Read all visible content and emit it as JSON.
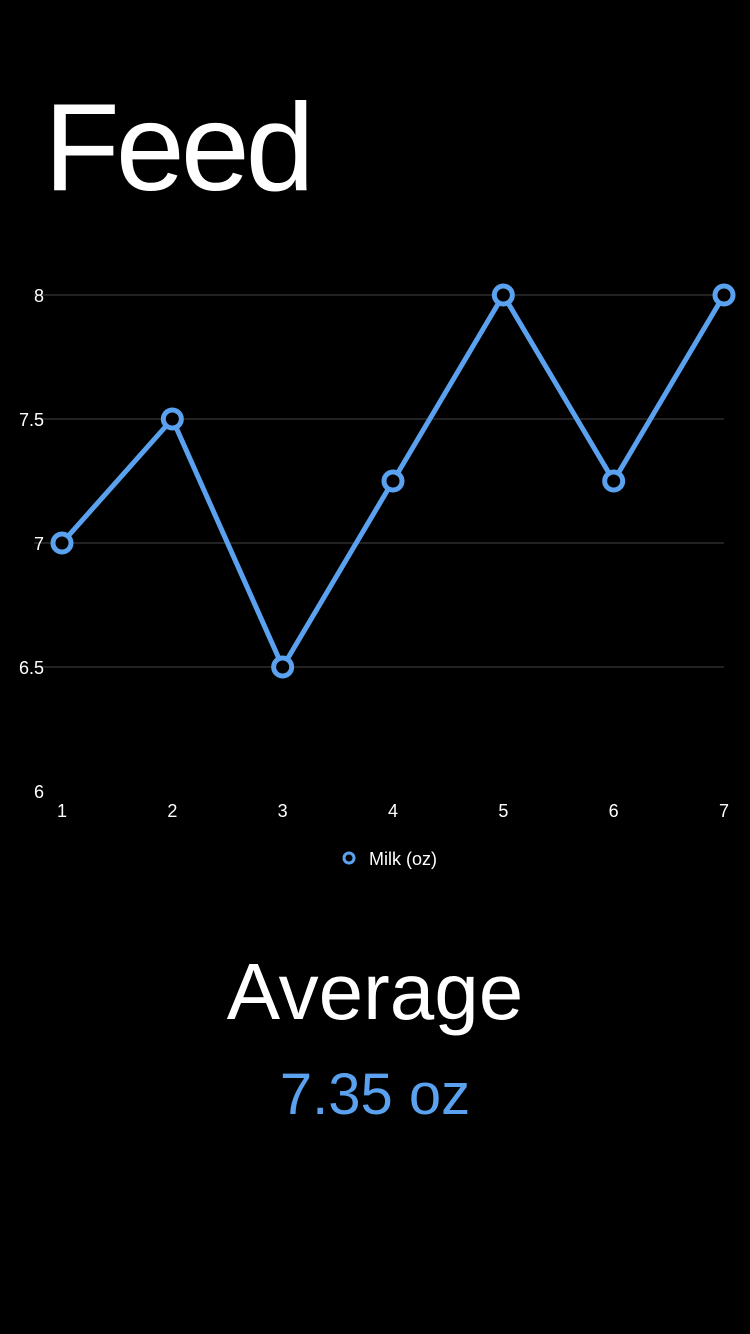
{
  "header": {
    "title": "Feed"
  },
  "chart_data": {
    "type": "line",
    "x": [
      1,
      2,
      3,
      4,
      5,
      6,
      7
    ],
    "series": [
      {
        "name": "Milk (oz)",
        "values": [
          7,
          7.5,
          6.5,
          7.25,
          8,
          7.25,
          8
        ]
      }
    ],
    "xticks": [
      "1",
      "2",
      "3",
      "4",
      "5",
      "6",
      "7"
    ],
    "yticks": [
      "6",
      "6.5",
      "7",
      "7.5",
      "8"
    ],
    "ylim": [
      6,
      8
    ],
    "xlim": [
      1,
      7
    ],
    "grid": true,
    "legend": "bottom-center",
    "line_color": "#5aa2ef",
    "grid_color": "#444444"
  },
  "summary": {
    "label": "Average",
    "value": "7.35 oz",
    "value_color": "#5aa2ef"
  }
}
